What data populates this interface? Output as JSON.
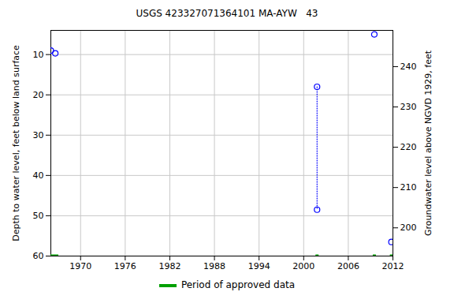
{
  "chart_data": {
    "type": "scatter",
    "title": "USGS 423327071364101 MA-AYW   43",
    "x_label": null,
    "y_label": "Depth to water level, feet below land surface",
    "y2_label": "Groundwater level above NGVD 1929, feet",
    "xlim": [
      1966,
      2012
    ],
    "xticks": [
      1970,
      1976,
      1982,
      1988,
      1994,
      2000,
      2006,
      2012
    ],
    "ylim": [
      4,
      60
    ],
    "yticks": [
      10,
      20,
      30,
      40,
      50,
      60
    ],
    "y2lim": [
      249,
      193
    ],
    "y2ticks": [
      200,
      210,
      220,
      230,
      240
    ],
    "grid": true,
    "series": [
      {
        "x": [
          1966.0,
          1966.6,
          2009.5,
          2011.8
        ],
        "values": [
          9,
          9.7,
          5,
          56.5
        ],
        "color": "#0000ff",
        "marker": "circle"
      },
      {
        "x": [
          2001.8,
          2001.8
        ],
        "values": [
          18,
          48.5
        ],
        "color": "#0000ff",
        "marker": "circle",
        "line_style": "dotted"
      }
    ],
    "approved": {
      "name": "Period of approved data",
      "color": "#00a000",
      "periods": [
        [
          1966.0,
          1966.8
        ],
        [
          2001.8,
          2001.8
        ],
        [
          2009.5,
          2009.5
        ],
        [
          2011.8,
          2011.8
        ]
      ]
    }
  }
}
